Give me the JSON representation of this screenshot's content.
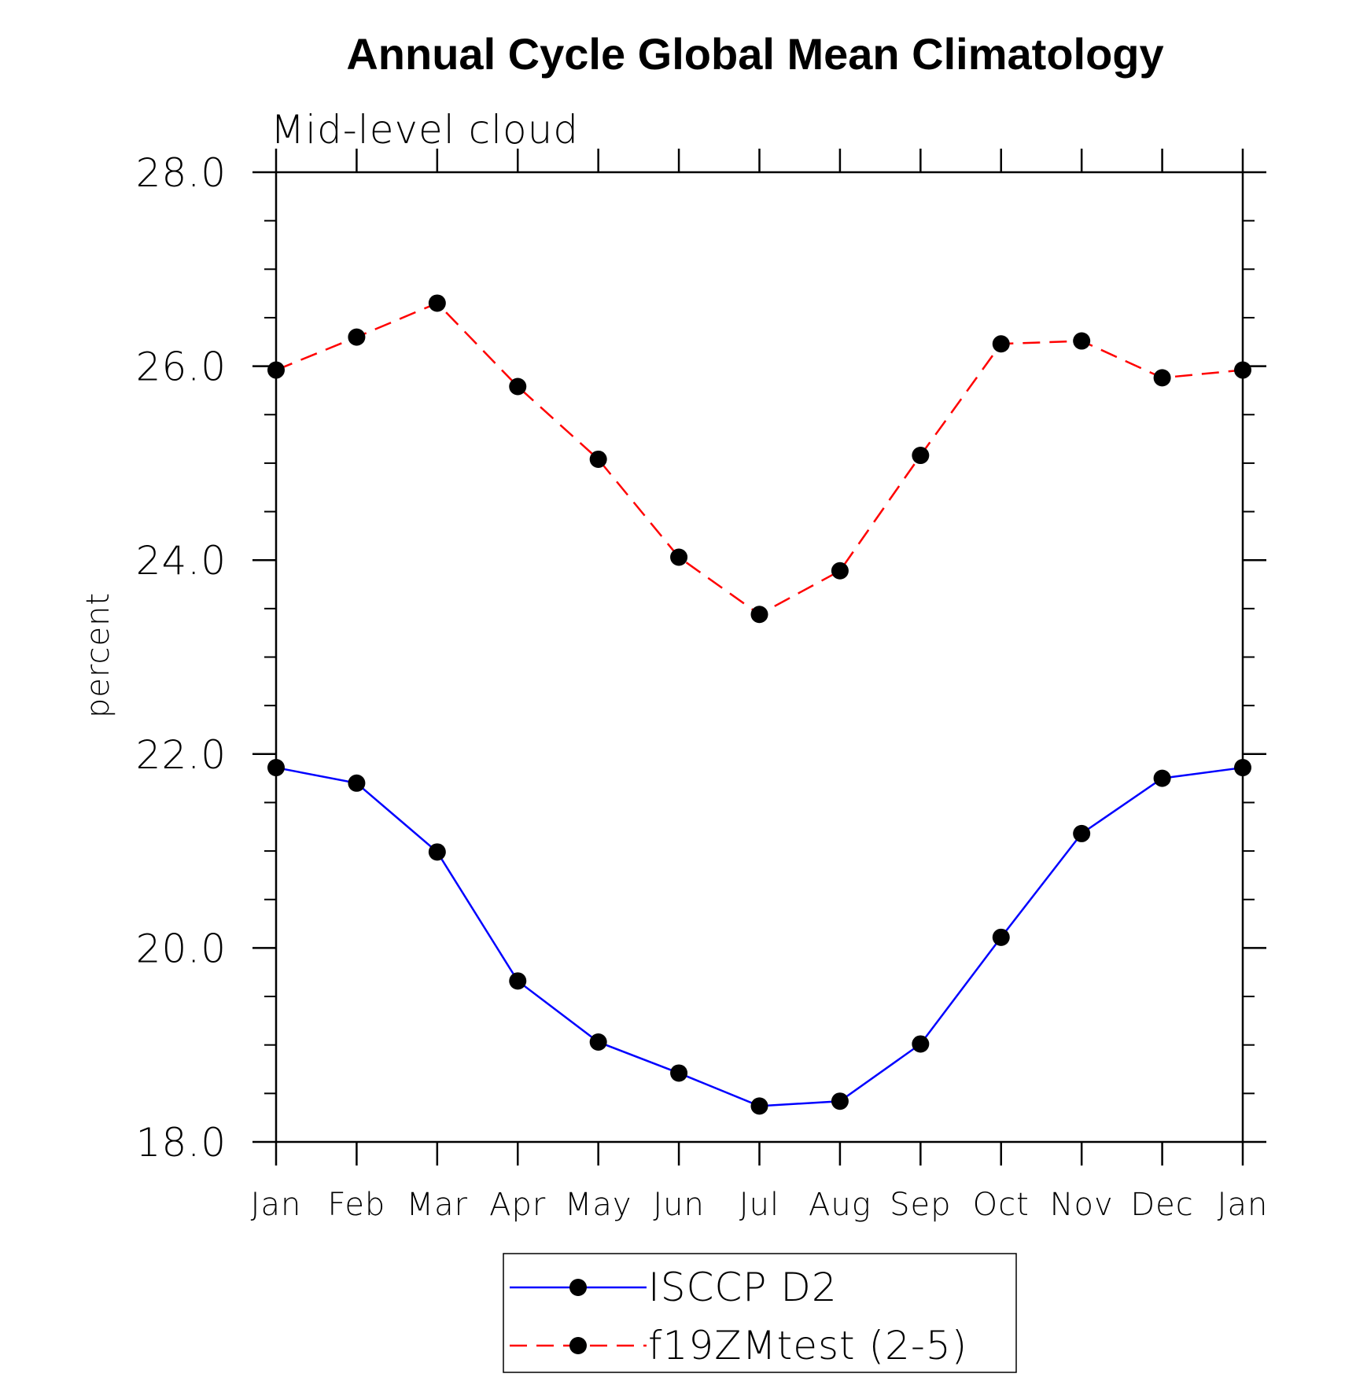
{
  "chart_data": {
    "type": "line",
    "title": "Annual Cycle Global Mean Climatology",
    "subtitle": "Mid-level cloud",
    "ylabel": "percent",
    "xlabel": "",
    "categories": [
      "Jan",
      "Feb",
      "Mar",
      "Apr",
      "May",
      "Jun",
      "Jul",
      "Aug",
      "Sep",
      "Oct",
      "Nov",
      "Dec",
      "Jan"
    ],
    "ylim": [
      18.0,
      28.0
    ],
    "y_major_ticks": [
      18.0,
      20.0,
      22.0,
      24.0,
      26.0,
      28.0
    ],
    "y_tick_labels": [
      "18.0",
      "20.0",
      "22.0",
      "24.0",
      "26.0",
      "28.0"
    ],
    "y_minor_step": 0.5,
    "grid": false,
    "legend_position": "bottom-center",
    "series": [
      {
        "name": "ISCCP D2",
        "color": "#0000ff",
        "line_style": "solid",
        "marker": "filled-circle",
        "values": [
          21.86,
          21.7,
          20.99,
          19.66,
          19.03,
          18.71,
          18.37,
          18.42,
          19.01,
          20.11,
          21.18,
          21.75,
          21.86
        ]
      },
      {
        "name": "f19ZMtest (2-5)",
        "color": "#ff0000",
        "line_style": "dashed",
        "marker": "filled-circle",
        "values": [
          25.96,
          26.3,
          26.65,
          25.79,
          25.04,
          24.03,
          23.44,
          23.89,
          25.08,
          26.23,
          26.26,
          25.88,
          25.96
        ]
      }
    ]
  }
}
